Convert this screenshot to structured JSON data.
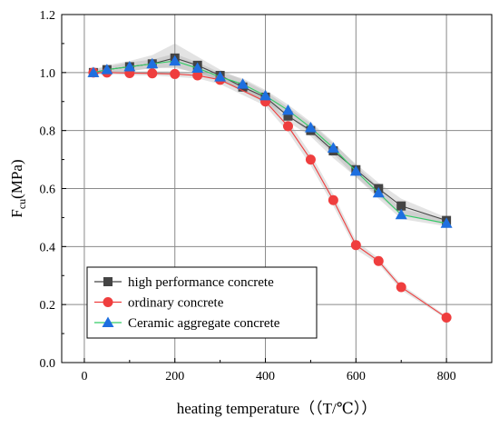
{
  "chart_data": {
    "type": "line",
    "xlabel": "heating temperature（（T/℃））",
    "ylabel_main": "F",
    "ylabel_sub": "cu",
    "ylabel_unit": "(MPa)",
    "xlim": [
      -50,
      900
    ],
    "ylim": [
      0.0,
      1.2
    ],
    "xticks": [
      0,
      200,
      400,
      600,
      800
    ],
    "yticks": [
      0.0,
      0.2,
      0.4,
      0.6,
      0.8,
      1.0,
      1.2
    ],
    "xtick_labels": [
      "0",
      "200",
      "400",
      "600",
      "800"
    ],
    "ytick_labels": [
      "0.0",
      "0.2",
      "0.4",
      "0.6",
      "0.8",
      "1.0",
      "1.2"
    ],
    "grid": true,
    "legend_position": "bottom-left",
    "series": [
      {
        "name": "high performance concrete",
        "color": "#444444",
        "marker": "square",
        "x": [
          20,
          50,
          100,
          150,
          200,
          250,
          300,
          350,
          400,
          450,
          500,
          550,
          600,
          650,
          700,
          800
        ],
        "y": [
          1.0,
          1.01,
          1.02,
          1.03,
          1.05,
          1.025,
          0.99,
          0.95,
          0.915,
          0.85,
          0.8,
          0.73,
          0.665,
          0.6,
          0.54,
          0.49
        ],
        "band_lower": [
          0.99,
          1.0,
          1.005,
          1.015,
          1.015,
          1.0,
          0.975,
          0.935,
          0.895,
          0.83,
          0.78,
          0.705,
          0.64,
          0.575,
          0.51,
          0.475
        ],
        "band_upper": [
          1.01,
          1.025,
          1.04,
          1.06,
          1.1,
          1.055,
          1.01,
          0.975,
          0.935,
          0.88,
          0.825,
          0.755,
          0.685,
          0.62,
          0.565,
          0.5
        ]
      },
      {
        "name": "ordinary concrete",
        "color": "#ef3e3e",
        "marker": "circle",
        "x": [
          20,
          50,
          100,
          150,
          200,
          250,
          300,
          400,
          450,
          500,
          550,
          600,
          650,
          700,
          800
        ],
        "y": [
          1.0,
          1.0,
          0.998,
          0.997,
          0.995,
          0.99,
          0.975,
          0.9,
          0.815,
          0.7,
          0.56,
          0.405,
          0.35,
          0.26,
          0.155
        ],
        "band_lower": [
          0.995,
          0.995,
          0.99,
          0.99,
          0.985,
          0.98,
          0.96,
          0.885,
          0.795,
          0.68,
          0.54,
          0.39,
          0.34,
          0.25,
          0.15
        ],
        "band_upper": [
          1.005,
          1.005,
          1.005,
          1.005,
          1.005,
          1.0,
          0.99,
          0.915,
          0.835,
          0.72,
          0.58,
          0.42,
          0.36,
          0.27,
          0.16
        ]
      },
      {
        "name": "Ceramic aggregate concrete",
        "color": "#1e6fe0",
        "line_color": "#33cc66",
        "marker": "triangle",
        "x": [
          20,
          50,
          100,
          150,
          200,
          250,
          300,
          350,
          400,
          450,
          500,
          550,
          600,
          650,
          700,
          800
        ],
        "y": [
          1.0,
          1.01,
          1.02,
          1.03,
          1.04,
          1.015,
          0.985,
          0.96,
          0.92,
          0.87,
          0.81,
          0.74,
          0.66,
          0.585,
          0.51,
          0.48
        ],
        "band_lower": [
          0.99,
          1.0,
          1.005,
          1.015,
          1.02,
          0.995,
          0.97,
          0.94,
          0.9,
          0.85,
          0.79,
          0.72,
          0.64,
          0.565,
          0.495,
          0.47
        ],
        "band_upper": [
          1.01,
          1.02,
          1.035,
          1.045,
          1.065,
          1.035,
          1.0,
          0.98,
          0.94,
          0.89,
          0.83,
          0.76,
          0.68,
          0.605,
          0.53,
          0.495
        ]
      }
    ]
  }
}
